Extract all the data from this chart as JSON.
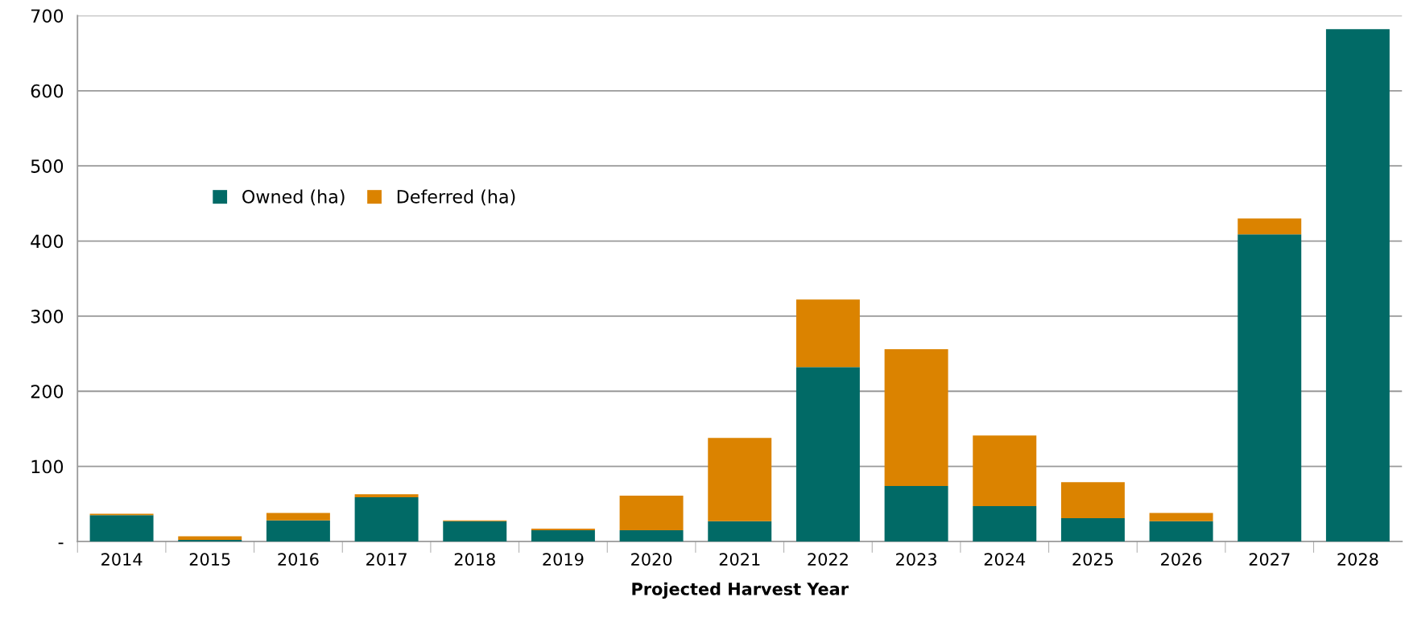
{
  "chart_data": {
    "type": "bar",
    "stacked": true,
    "xlabel": "Projected Harvest Year",
    "categories": [
      "2014",
      "2015",
      "2016",
      "2017",
      "2018",
      "2019",
      "2020",
      "2021",
      "2022",
      "2023",
      "2024",
      "2025",
      "2026",
      "2027",
      "2028"
    ],
    "series": [
      {
        "name": "Owned (ha)",
        "color": "#016a66",
        "values": [
          35,
          2,
          28,
          59,
          27,
          15,
          15,
          27,
          232,
          74,
          47,
          31,
          27,
          409,
          682
        ]
      },
      {
        "name": "Deferred (ha)",
        "color": "#db8300",
        "values": [
          2,
          5,
          10,
          4,
          1,
          2,
          46,
          111,
          90,
          182,
          94,
          48,
          11,
          21,
          0
        ]
      }
    ],
    "ylim": [
      0,
      700
    ],
    "yticks": [
      {
        "value": 0,
        "label": "-"
      },
      100,
      200,
      300,
      400,
      500,
      600,
      700
    ],
    "grid": "y",
    "legend": "top left"
  }
}
